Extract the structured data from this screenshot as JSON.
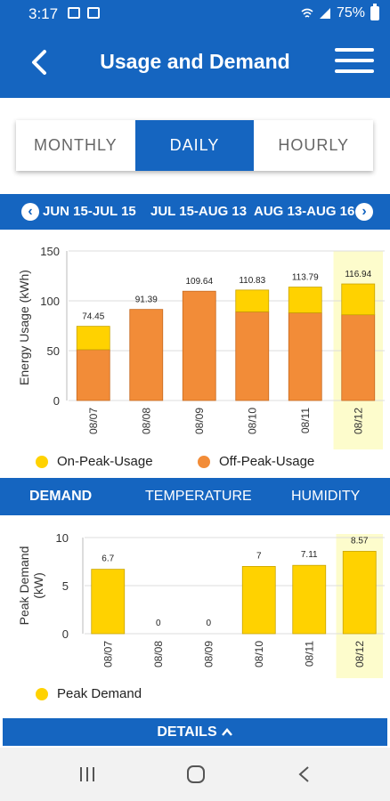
{
  "status_bar": {
    "time": "3:17",
    "battery": "75%"
  },
  "header": {
    "title": "Usage and Demand"
  },
  "period_tabs": [
    {
      "label": "MONTHLY",
      "active": false
    },
    {
      "label": "DAILY",
      "active": true
    },
    {
      "label": "HOURLY",
      "active": false
    }
  ],
  "ranges": [
    "JUN 15-JUL 15",
    "JUL 15-AUG 13",
    "AUG 13-AUG 16"
  ],
  "metric_tabs": [
    {
      "label": "DEMAND",
      "active": true
    },
    {
      "label": "TEMPERATURE",
      "active": false
    },
    {
      "label": "HUMIDITY",
      "active": false
    }
  ],
  "details_label": "DETAILS",
  "colors": {
    "primary": "#1565c0",
    "on_peak": "#ffd200",
    "off_peak": "#f28c38",
    "highlight": "#fdfccc"
  },
  "chart_data": [
    {
      "type": "bar",
      "stacked": true,
      "ylabel": "Energy Usage (kWh)",
      "ylim": [
        0,
        150
      ],
      "yticks": [
        0,
        50,
        100,
        150
      ],
      "categories": [
        "08/07",
        "08/08",
        "08/09",
        "08/10",
        "08/11",
        "08/12"
      ],
      "totals": [
        "74.45",
        "91.39",
        "109.64",
        "110.83",
        "113.79",
        "116.94"
      ],
      "series": [
        {
          "name": "Off-Peak-Usage",
          "values": [
            51,
            91.39,
            109.64,
            89,
            88,
            86
          ]
        },
        {
          "name": "On-Peak-Usage",
          "values": [
            23.45,
            0,
            0,
            21.83,
            25.79,
            30.94
          ]
        }
      ],
      "legend_order": [
        "On-Peak-Usage",
        "Off-Peak-Usage"
      ],
      "highlight_category": "08/12"
    },
    {
      "type": "bar",
      "ylabel": "Peak Demand (kW)",
      "ylabel_lines": [
        "Peak Demand",
        "(kW)"
      ],
      "ylim": [
        0,
        10
      ],
      "yticks": [
        0,
        5,
        10
      ],
      "categories": [
        "08/07",
        "08/08",
        "08/09",
        "08/10",
        "08/11",
        "08/12"
      ],
      "value_labels": [
        "6.7",
        "0",
        "0",
        "7",
        "7.11",
        "8.57"
      ],
      "series": [
        {
          "name": "Peak Demand",
          "values": [
            6.7,
            0,
            0,
            7,
            7.11,
            8.57
          ]
        }
      ],
      "highlight_category": "08/12"
    }
  ]
}
